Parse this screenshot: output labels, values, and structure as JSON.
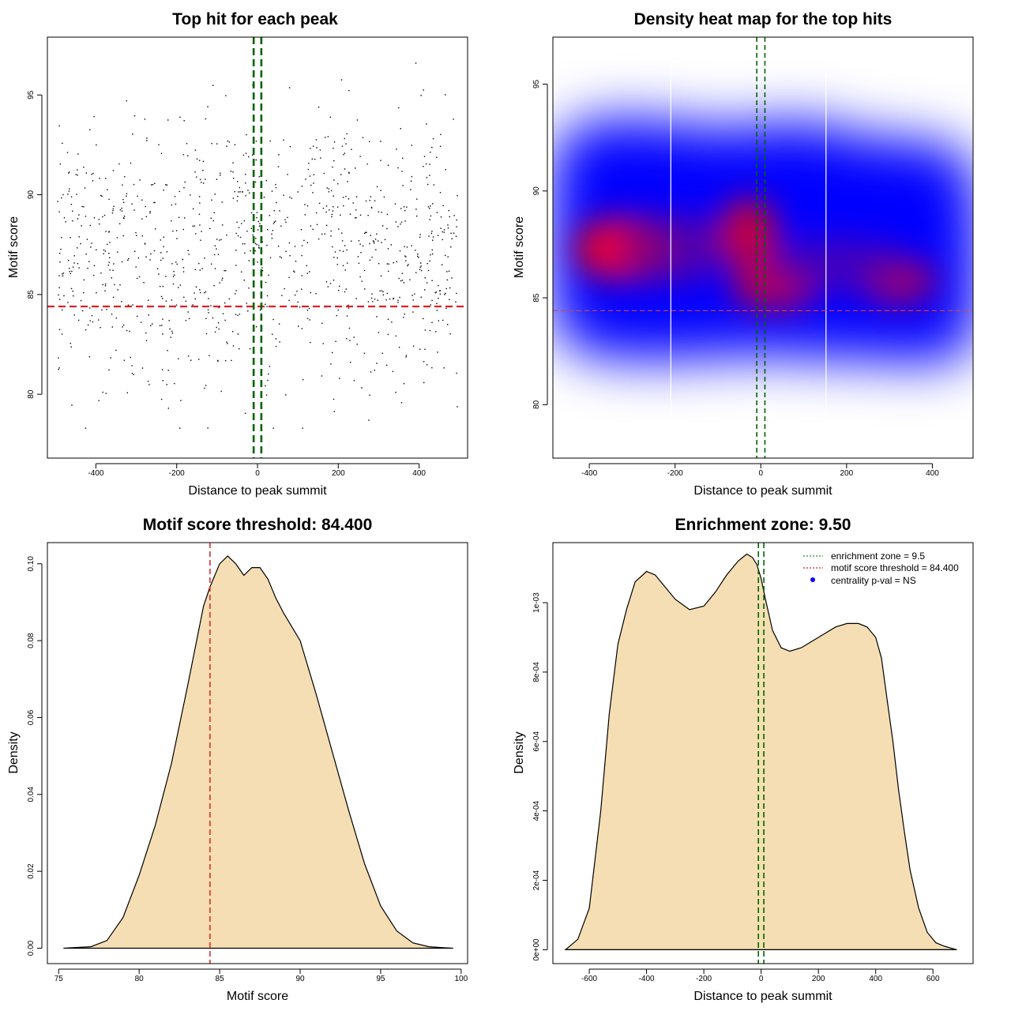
{
  "chart_data": [
    {
      "id": "scatter",
      "type": "scatter",
      "title": "Top hit for each peak",
      "xlabel": "Distance to peak summit",
      "ylabel": "Motif score",
      "xlim": [
        -520,
        520
      ],
      "ylim": [
        76.8,
        97.9
      ],
      "x_ticks": [
        -400,
        -200,
        0,
        200,
        400
      ],
      "y_ticks": [
        80,
        85,
        90,
        95
      ],
      "x_tick_labels": [
        "-400",
        "-200",
        "0",
        "200",
        "400"
      ],
      "y_tick_labels": [
        "80",
        "85",
        "90",
        "95"
      ],
      "threshold_y": 84.4,
      "zone_x": [
        -9.5,
        9.5
      ],
      "threshold_color": "#dd2222",
      "zone_color": "#006400",
      "point_color": "#000000",
      "n_points": 1000,
      "x_range": [
        -495,
        495
      ],
      "score_mean": 87.3,
      "score_sd": 3.5
    },
    {
      "id": "heatmap",
      "type": "heatmap",
      "title": "Density heat map for the top hits",
      "xlabel": "Distance to peak summit",
      "ylabel": "Motif score",
      "xlim": [
        -485,
        495
      ],
      "ylim": [
        77.5,
        97.2
      ],
      "x_ticks": [
        -400,
        -200,
        0,
        200,
        400
      ],
      "y_ticks": [
        80,
        85,
        90,
        95
      ],
      "x_tick_labels": [
        "-400",
        "-200",
        "0",
        "200",
        "400"
      ],
      "y_tick_labels": [
        "80",
        "85",
        "90",
        "95"
      ],
      "threshold_y": 84.4,
      "zone_x": [
        -9.5,
        9.5
      ],
      "divider_x": [
        -210,
        152
      ],
      "density_hotspots": [
        {
          "x": -320,
          "y": 87.3
        },
        {
          "x": -30,
          "y": 88.0
        },
        {
          "x": 30,
          "y": 85.5
        },
        {
          "x": 320,
          "y": 85.8
        }
      ],
      "color_scale": [
        "#ffffff",
        "#0000ff",
        "#ff0000"
      ]
    },
    {
      "id": "score-density",
      "type": "area",
      "title": "Motif score threshold: 84.400",
      "xlabel": "Motif score",
      "ylabel": "Density",
      "xlim": [
        74.3,
        100.4
      ],
      "ylim": [
        -0.004,
        0.1055
      ],
      "x_ticks": [
        75,
        80,
        85,
        90,
        95,
        100
      ],
      "y_ticks": [
        0.0,
        0.02,
        0.04,
        0.06,
        0.08,
        0.1
      ],
      "x_tick_labels": [
        "75",
        "80",
        "85",
        "90",
        "95",
        "100"
      ],
      "y_tick_labels": [
        "0.00",
        "0.02",
        "0.04",
        "0.06",
        "0.08",
        "0.10"
      ],
      "threshold_x": 84.4,
      "fill_color": "#f5deb3",
      "x": [
        75.3,
        77,
        78,
        79,
        80,
        81,
        82,
        83,
        84,
        84.4,
        85,
        85.5,
        86,
        86.5,
        87,
        87.5,
        88,
        88.5,
        89,
        90,
        91,
        92,
        93,
        94,
        95,
        96,
        97,
        98,
        99,
        99.5
      ],
      "y": [
        0.0,
        0.0004,
        0.002,
        0.008,
        0.019,
        0.032,
        0.048,
        0.068,
        0.089,
        0.094,
        0.1,
        0.102,
        0.1,
        0.097,
        0.099,
        0.099,
        0.096,
        0.091,
        0.087,
        0.08,
        0.066,
        0.051,
        0.036,
        0.022,
        0.011,
        0.0045,
        0.0014,
        0.0004,
        0.0001,
        0.0
      ]
    },
    {
      "id": "distance-density",
      "type": "area",
      "title": "Enrichment zone: 9.50",
      "xlabel": "Distance to peak summit",
      "ylabel": "Density",
      "xlim": [
        -727,
        740
      ],
      "ylim": [
        -4e-05,
        0.001173
      ],
      "x_ticks": [
        -600,
        -400,
        -200,
        0,
        200,
        400,
        600
      ],
      "y_ticks": [
        0.0,
        0.0002,
        0.0004,
        0.0006,
        0.0008,
        0.001
      ],
      "x_tick_labels": [
        "-600",
        "-400",
        "-200",
        "0",
        "200",
        "400",
        "600"
      ],
      "y_tick_labels": [
        "0e+00",
        "2e-04",
        "4e-04",
        "6e-04",
        "8e-04",
        "1e-03"
      ],
      "zone_x": [
        -9.5,
        9.5
      ],
      "fill_color": "#f5deb3",
      "x": [
        -683,
        -640,
        -600,
        -560,
        -530,
        -500,
        -470,
        -440,
        -400,
        -370,
        -340,
        -300,
        -250,
        -200,
        -160,
        -120,
        -80,
        -50,
        -30,
        -15,
        0,
        15,
        40,
        70,
        100,
        140,
        180,
        220,
        260,
        300,
        340,
        370,
        400,
        420,
        440,
        460,
        480,
        500,
        520,
        550,
        580,
        610,
        640,
        683
      ],
      "y": [
        0.0,
        3e-05,
        0.00012,
        0.0004,
        0.00068,
        0.00088,
        0.00098,
        0.00106,
        0.00109,
        0.00108,
        0.00105,
        0.00101,
        0.00098,
        0.00099,
        0.00103,
        0.00108,
        0.00112,
        0.00114,
        0.00113,
        0.00111,
        0.00107,
        0.00101,
        0.00092,
        0.00087,
        0.00086,
        0.00087,
        0.00089,
        0.00091,
        0.00093,
        0.00094,
        0.00094,
        0.00093,
        0.0009,
        0.00084,
        0.00072,
        0.0006,
        0.00046,
        0.00034,
        0.00023,
        0.00012,
        5e-05,
        2e-05,
        1e-05,
        0.0
      ],
      "legend": [
        {
          "label": "enrichment zone = 9.5",
          "color": "#228B22",
          "symbol": "dotted-line"
        },
        {
          "label": "motif score threshold = 84.400",
          "color": "#dd2222",
          "symbol": "dotted-line"
        },
        {
          "label": "centrality p-val = NS",
          "color": "#0000ff",
          "symbol": "point"
        }
      ],
      "legend_position": "top-right"
    }
  ]
}
